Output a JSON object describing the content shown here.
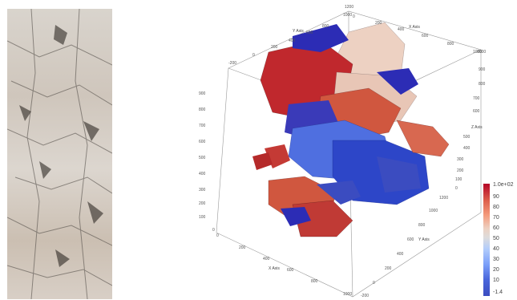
{
  "axes": {
    "x_title": "X Axis",
    "y_title": "Y Axis",
    "z_title": "Z Axis",
    "top_x_ticks": [
      "0",
      "200",
      "400",
      "600",
      "800",
      "1000"
    ],
    "top_y_ticks": [
      "-200",
      "0",
      "200",
      "400",
      "600",
      "800",
      "1000"
    ],
    "right_z_ticks": [
      "1000",
      "900",
      "800",
      "700",
      "600",
      "500",
      "400",
      "300",
      "200",
      "100",
      "0"
    ],
    "left_z_ticks": [
      "900",
      "800",
      "700",
      "600",
      "500",
      "400",
      "300",
      "200",
      "100",
      "0"
    ],
    "bottom_x_ticks": [
      "0",
      "200",
      "400",
      "600",
      "800",
      "1000"
    ],
    "bottom_y_ticks": [
      "1200",
      "1000",
      "800",
      "600",
      "400",
      "200",
      "0",
      "-200"
    ],
    "top_corner_label": "1200"
  },
  "colorbar": {
    "labels": [
      "1.0e+02",
      "90",
      "80",
      "70",
      "60",
      "50",
      "40",
      "30",
      "20",
      "10",
      "-1.4"
    ]
  },
  "colors": {
    "high": "#b40426",
    "mid": "#dddcdc",
    "low": "#3b4cc0"
  }
}
